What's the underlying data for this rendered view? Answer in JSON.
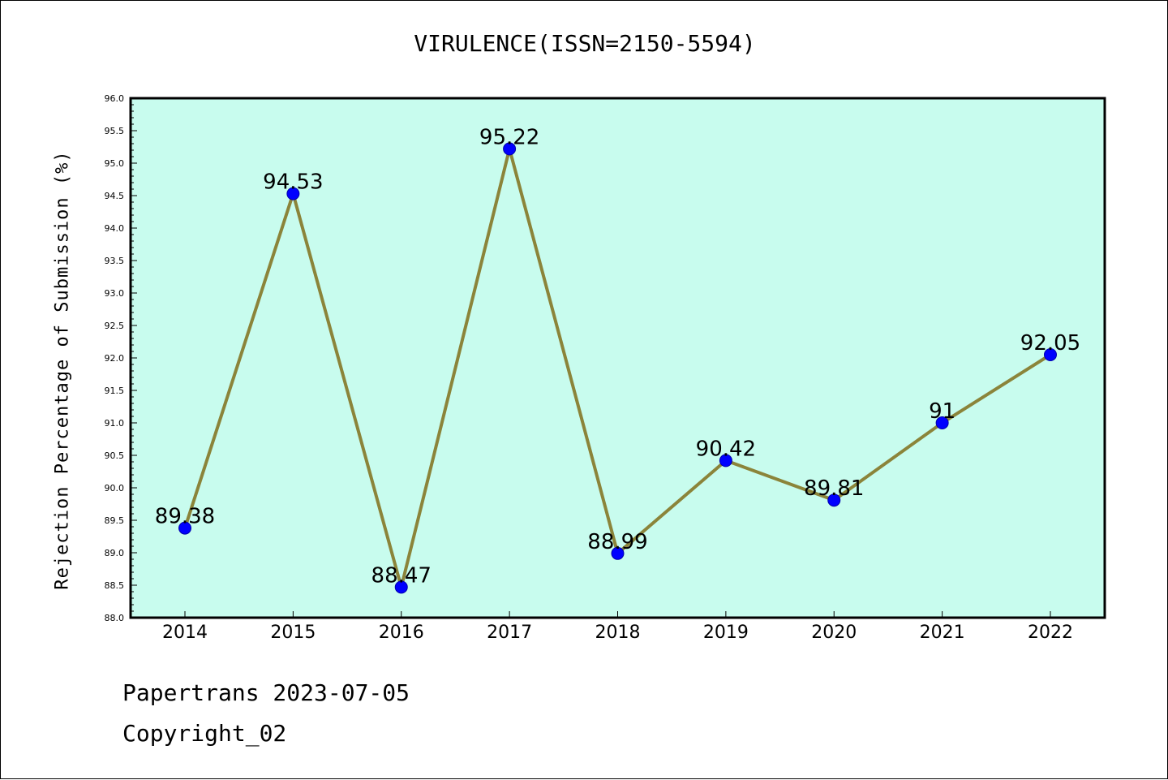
{
  "chart_data": {
    "type": "line",
    "title": "VIRULENCE(ISSN=2150-5594)",
    "xlabel": "",
    "ylabel": "Rejection Percentage of Submission (%)",
    "categories": [
      "2014",
      "2015",
      "2016",
      "2017",
      "2018",
      "2019",
      "2020",
      "2021",
      "2022"
    ],
    "values": [
      89.38,
      94.53,
      88.47,
      95.22,
      88.99,
      90.42,
      89.81,
      91,
      92.05
    ],
    "data_labels": [
      "89.38",
      "94.53",
      "88.47",
      "95.22",
      "88.99",
      "90.42",
      "89.81",
      "91",
      "92.05"
    ],
    "ylim": [
      88.0,
      96.0
    ],
    "yticks": [
      "88.0",
      "88.5",
      "89.0",
      "89.5",
      "90.0",
      "90.5",
      "91.0",
      "91.5",
      "92.0",
      "92.5",
      "93.0",
      "93.5",
      "94.0",
      "94.5",
      "95.0",
      "95.5",
      "96.0"
    ],
    "grid": false,
    "colors": {
      "plot_background": "#c8fcee",
      "line": "#8b843a",
      "marker": "#0000ff"
    }
  },
  "footer": {
    "line1": "Papertrans 2023-07-05",
    "line2": "Copyright_02"
  }
}
